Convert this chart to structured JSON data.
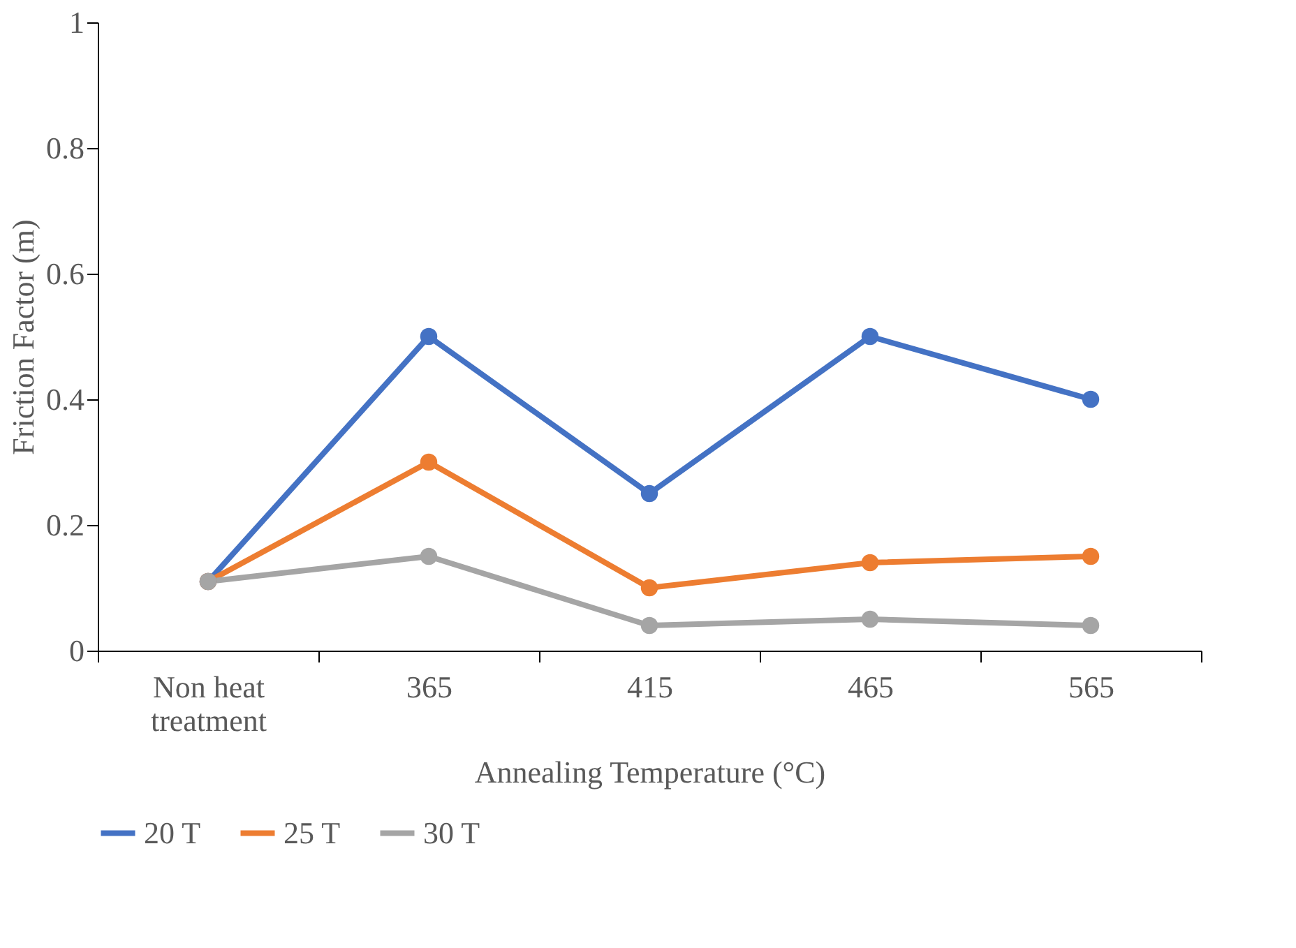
{
  "chart_data": {
    "type": "line",
    "xlabel": "Annealing Temperature (°C)",
    "ylabel": "Friction Factor (m)",
    "categories": [
      "Non heat treatment",
      "365",
      "415",
      "465",
      "565"
    ],
    "series": [
      {
        "name": "20 T",
        "color": "#4472c4",
        "values": [
          0.11,
          0.5,
          0.25,
          0.5,
          0.4
        ]
      },
      {
        "name": "25 T",
        "color": "#ed7d31",
        "values": [
          0.11,
          0.3,
          0.1,
          0.14,
          0.15
        ]
      },
      {
        "name": "30 T",
        "color": "#a5a5a5",
        "values": [
          0.11,
          0.15,
          0.04,
          0.05,
          0.04
        ]
      }
    ],
    "ylim": [
      0,
      1
    ],
    "yticks": [
      0,
      0.2,
      0.4,
      0.6,
      0.8,
      1
    ],
    "grid": false,
    "legend": "bottom",
    "marker": "circle",
    "line_style": "solid"
  }
}
